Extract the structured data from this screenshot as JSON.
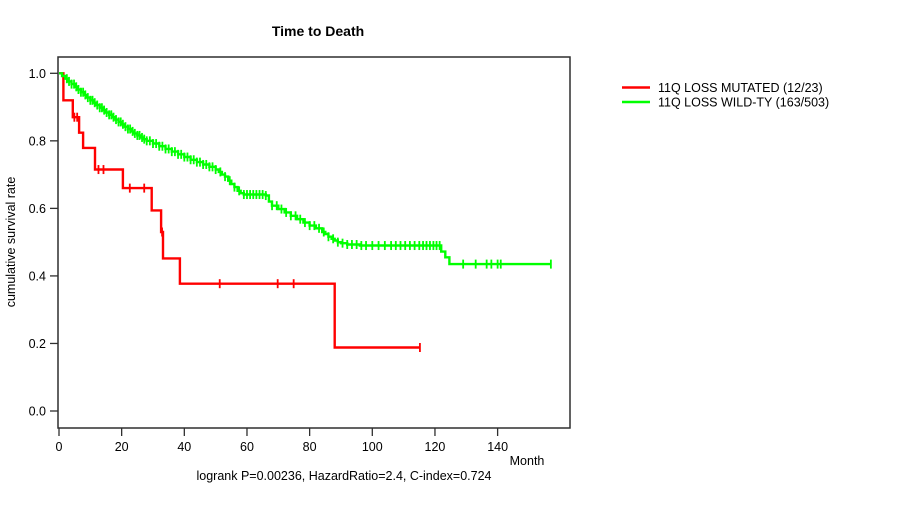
{
  "title": "Time to Death",
  "footer": "logrank P=0.00236, HazardRatio=2.4, C-index=0.724",
  "stats": {
    "logrank_p": "0.00236",
    "hazard_ratio": "2.4",
    "c_index": "0.724"
  },
  "chart_data": {
    "type": "line",
    "variant": "kaplan_meier_step_curve",
    "title": "Time to Death",
    "xlabel": "Month",
    "ylabel": "cumulative survival rate",
    "xlim": [
      0,
      163
    ],
    "ylim": [
      0.0,
      1.0
    ],
    "grid": false,
    "legend_position": "right-outside",
    "x_ticks": [
      {
        "v": 0,
        "label": "0"
      },
      {
        "v": 20,
        "label": "20"
      },
      {
        "v": 40,
        "label": "40"
      },
      {
        "v": 60,
        "label": "60"
      },
      {
        "v": 80,
        "label": "80"
      },
      {
        "v": 100,
        "label": "100"
      },
      {
        "v": 120,
        "label": "120"
      },
      {
        "v": 140,
        "label": "140"
      }
    ],
    "y_ticks": [
      {
        "v": 0.0,
        "label": "0.0"
      },
      {
        "v": 0.2,
        "label": "0.2"
      },
      {
        "v": 0.4,
        "label": "0.4"
      },
      {
        "v": 0.6,
        "label": "0.6"
      },
      {
        "v": 0.8,
        "label": "0.8"
      },
      {
        "v": 1.0,
        "label": "1.0"
      }
    ],
    "series": [
      {
        "name": "11Q LOSS MUTATED (12/23)",
        "color": "#ff0000",
        "events": 12,
        "n": 23,
        "steps": [
          [
            0,
            1.0
          ],
          [
            1.4,
            0.92
          ],
          [
            4.4,
            0.87
          ],
          [
            6.4,
            0.824
          ],
          [
            7.7,
            0.779
          ],
          [
            11.5,
            0.715
          ],
          [
            20.4,
            0.66
          ],
          [
            29.6,
            0.594
          ],
          [
            32.6,
            0.53
          ],
          [
            33.2,
            0.452
          ],
          [
            38.6,
            0.377
          ],
          [
            88,
            0.188
          ]
        ],
        "end_month": 115.2,
        "censor_months": [
          4.9,
          5.8,
          12.6,
          14.2,
          22.6,
          27.2,
          32.9,
          51.3,
          69.8,
          74.9,
          115.2
        ]
      },
      {
        "name": "11Q LOSS WILD-TY (163/503)",
        "color": "#00ff00",
        "events": 163,
        "n": 503,
        "steps": [
          [
            0,
            1.0
          ],
          [
            1,
            0.992
          ],
          [
            2,
            0.984
          ],
          [
            3,
            0.976
          ],
          [
            4,
            0.968
          ],
          [
            5,
            0.96
          ],
          [
            6,
            0.952
          ],
          [
            7,
            0.944
          ],
          [
            8,
            0.936
          ],
          [
            9,
            0.928
          ],
          [
            10,
            0.92
          ],
          [
            11,
            0.913
          ],
          [
            12,
            0.906
          ],
          [
            13,
            0.898
          ],
          [
            14,
            0.891
          ],
          [
            15,
            0.884
          ],
          [
            16,
            0.877
          ],
          [
            17,
            0.87
          ],
          [
            18,
            0.863
          ],
          [
            19,
            0.856
          ],
          [
            20,
            0.849
          ],
          [
            21,
            0.842
          ],
          [
            22,
            0.835
          ],
          [
            23,
            0.828
          ],
          [
            24,
            0.822
          ],
          [
            25,
            0.816
          ],
          [
            26,
            0.81
          ],
          [
            27,
            0.805
          ],
          [
            28,
            0.8
          ],
          [
            30,
            0.792
          ],
          [
            32,
            0.784
          ],
          [
            34,
            0.776
          ],
          [
            36,
            0.768
          ],
          [
            38,
            0.76
          ],
          [
            40,
            0.752
          ],
          [
            42,
            0.744
          ],
          [
            44,
            0.737
          ],
          [
            46,
            0.73
          ],
          [
            48,
            0.723
          ],
          [
            50,
            0.715
          ],
          [
            51,
            0.708
          ],
          [
            52,
            0.7
          ],
          [
            53,
            0.694
          ],
          [
            54,
            0.682
          ],
          [
            55,
            0.672
          ],
          [
            56,
            0.663
          ],
          [
            57,
            0.652
          ],
          [
            58,
            0.645
          ],
          [
            59,
            0.641
          ],
          [
            66,
            0.638
          ],
          [
            67,
            0.62
          ],
          [
            68,
            0.608
          ],
          [
            70,
            0.598
          ],
          [
            72,
            0.588
          ],
          [
            74,
            0.578
          ],
          [
            76,
            0.568
          ],
          [
            78,
            0.558
          ],
          [
            80,
            0.549
          ],
          [
            82,
            0.541
          ],
          [
            84,
            0.53
          ],
          [
            85,
            0.524
          ],
          [
            86,
            0.516
          ],
          [
            87,
            0.51
          ],
          [
            88,
            0.505
          ],
          [
            89,
            0.5
          ],
          [
            90,
            0.497
          ],
          [
            92,
            0.493
          ],
          [
            96,
            0.49
          ],
          [
            122,
            0.472
          ],
          [
            123.3,
            0.455
          ],
          [
            124.6,
            0.435
          ]
        ],
        "end_month": 157,
        "censor_months": [
          2.5,
          3.2,
          4,
          4.8,
          5.5,
          6.2,
          7,
          7.7,
          8.4,
          9.2,
          10,
          10.7,
          11.4,
          12.2,
          13,
          13.7,
          14.4,
          15.2,
          16,
          16.7,
          17.4,
          18.2,
          19,
          19.7,
          20.4,
          21.2,
          22,
          22.7,
          23.5,
          24.2,
          25,
          25.7,
          26.5,
          27.2,
          28,
          29,
          30,
          31,
          32,
          33,
          34,
          35,
          36,
          37,
          38,
          39,
          40,
          41,
          42,
          43,
          44,
          45,
          46,
          47,
          48,
          49,
          50,
          51.5,
          53,
          54.5,
          56,
          57.5,
          59,
          60,
          61,
          62,
          63,
          64,
          65,
          66,
          68,
          69.5,
          71,
          72.5,
          74,
          75.5,
          77,
          78.5,
          80,
          81.5,
          83,
          84.5,
          86,
          87.5,
          89,
          90.5,
          92,
          93.5,
          95,
          96.5,
          98,
          100,
          102,
          104,
          106,
          107.5,
          109,
          110.5,
          112,
          113.5,
          115,
          116.2,
          117.3,
          118.4,
          119.5,
          120.5,
          121.5,
          129,
          133,
          136.5,
          138,
          140,
          141,
          157
        ]
      }
    ]
  },
  "colors": {
    "mutated": "#ff0000",
    "wildtype": "#00ff00",
    "axis": "#2f2f2f",
    "background": "#ffffff"
  }
}
